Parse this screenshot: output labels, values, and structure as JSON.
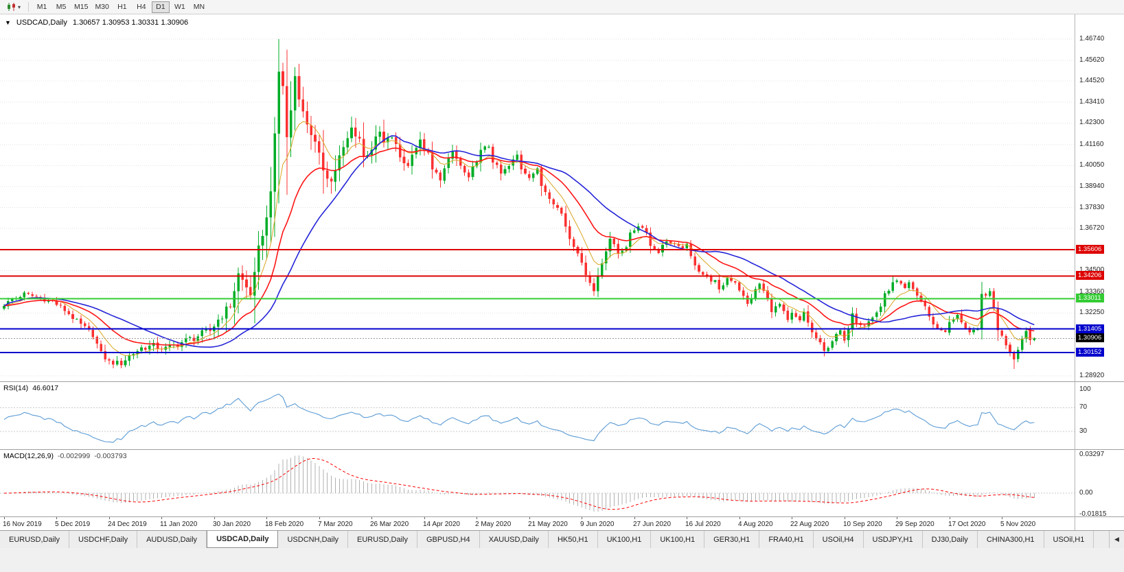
{
  "toolbar": {
    "chart_type_icon": "candlestick-chart",
    "dropdown_caret": "▾",
    "timeframes": [
      "M1",
      "M5",
      "M15",
      "M30",
      "H1",
      "H4",
      "D1",
      "W1",
      "MN"
    ],
    "active_timeframe": "D1"
  },
  "chart": {
    "collapse_icon": "▼",
    "symbol": "USDCAD,Daily",
    "ohlc": "1.30657 1.30953 1.30331 1.30906"
  },
  "price_axis": {
    "grid_labels": [
      "1.46740",
      "1.45620",
      "1.44520",
      "1.43410",
      "1.42300",
      "1.41160",
      "1.40050",
      "1.38940",
      "1.37830",
      "1.36720",
      "1.34500",
      "1.33360",
      "1.32250",
      "1.28920"
    ],
    "level_badges": [
      {
        "value": "1.35606",
        "price": 1.35606,
        "color": "#dd0000"
      },
      {
        "value": "1.34206",
        "price": 1.34206,
        "color": "#dd0000"
      },
      {
        "value": "1.33011",
        "price": 1.33011,
        "color": "#33cc33"
      },
      {
        "value": "1.31405",
        "price": 1.31405,
        "color": "#0000cc"
      },
      {
        "value": "1.30906",
        "price": 1.30906,
        "color": "#000000",
        "current": true
      },
      {
        "value": "1.30152",
        "price": 1.30152,
        "color": "#0000cc"
      }
    ]
  },
  "rsi_panel": {
    "label": "RSI(14)",
    "value": "46.6017",
    "axis_labels": [
      {
        "v": 100,
        "text": "100"
      },
      {
        "v": 70,
        "text": "70"
      },
      {
        "v": 30,
        "text": "30"
      }
    ]
  },
  "macd_panel": {
    "label": "MACD(12,26,9)",
    "main_value": "-0.002999",
    "signal_value": "-0.003793",
    "axis_labels": [
      {
        "v": 0.03297,
        "text": "0.03297"
      },
      {
        "v": 0,
        "text": "0.00"
      },
      {
        "v": -0.01815,
        "text": "-0.01815"
      }
    ]
  },
  "date_axis": {
    "labels": [
      "16 Nov 2019",
      "5 Dec 2019",
      "24 Dec 2019",
      "11 Jan 2020",
      "30 Jan 2020",
      "18 Feb 2020",
      "7 Mar 2020",
      "26 Mar 2020",
      "14 Apr 2020",
      "2 May 2020",
      "21 May 2020",
      "9 Jun 2020",
      "27 Jun 2020",
      "16 Jul 2020",
      "4 Aug 2020",
      "22 Aug 2020",
      "10 Sep 2020",
      "29 Sep 2020",
      "17 Oct 2020",
      "5 Nov 2020"
    ],
    "label_every_n_candles": 13
  },
  "tabs": {
    "items": [
      "EURUSD,Daily",
      "USDCHF,Daily",
      "AUDUSD,Daily",
      "USDCAD,Daily",
      "USDCNH,Daily",
      "EURUSD,Daily",
      "GBPUSD,H4",
      "XAUUSD,Daily",
      "HK50,H1",
      "UK100,H1",
      "UK100,H1",
      "GER30,H1",
      "FRA40,H1",
      "USOil,H4",
      "USDJPY,H1",
      "DJ30,Daily",
      "CHINA300,H1",
      "USOil,H1"
    ],
    "active_index": 3,
    "scroll_left_icon": "◀"
  },
  "chart_data": {
    "type": "candlestick",
    "symbol": "USDCAD",
    "timeframe": "D1",
    "n_candles": 256,
    "ylim": [
      1.2863,
      1.4805
    ],
    "noise_amp": 0.0022,
    "vol_peak_index": 70,
    "candle_colors": {
      "up": "#00ad27",
      "down": "#fb3131"
    },
    "close_anchors": [
      [
        0,
        1.327
      ],
      [
        2,
        1.3295
      ],
      [
        5,
        1.3325
      ],
      [
        8,
        1.331
      ],
      [
        12,
        1.3285
      ],
      [
        15,
        1.324
      ],
      [
        18,
        1.318
      ],
      [
        22,
        1.311
      ],
      [
        24,
        1.301
      ],
      [
        26,
        1.2965
      ],
      [
        29,
        1.2958
      ],
      [
        31,
        1.3
      ],
      [
        34,
        1.304
      ],
      [
        37,
        1.305
      ],
      [
        40,
        1.3035
      ],
      [
        44,
        1.307
      ],
      [
        47,
        1.3095
      ],
      [
        51,
        1.313
      ],
      [
        53,
        1.319
      ],
      [
        56,
        1.3265
      ],
      [
        58,
        1.343
      ],
      [
        60,
        1.336
      ],
      [
        61,
        1.333
      ],
      [
        62,
        1.342
      ],
      [
        63,
        1.356
      ],
      [
        64,
        1.365
      ],
      [
        65,
        1.372
      ],
      [
        66,
        1.389
      ],
      [
        67,
        1.415
      ],
      [
        68,
        1.45
      ],
      [
        69,
        1.443
      ],
      [
        70,
        1.415
      ],
      [
        71,
        1.43
      ],
      [
        72,
        1.448
      ],
      [
        73,
        1.438
      ],
      [
        74,
        1.428
      ],
      [
        76,
        1.418
      ],
      [
        78,
        1.405
      ],
      [
        79,
        1.399
      ],
      [
        81,
        1.392
      ],
      [
        83,
        1.405
      ],
      [
        84,
        1.409
      ],
      [
        86,
        1.42
      ],
      [
        88,
        1.415
      ],
      [
        89,
        1.405
      ],
      [
        91,
        1.41
      ],
      [
        93,
        1.418
      ],
      [
        94,
        1.412
      ],
      [
        96,
        1.416
      ],
      [
        98,
        1.405
      ],
      [
        100,
        1.4
      ],
      [
        101,
        1.408
      ],
      [
        103,
        1.413
      ],
      [
        105,
        1.406
      ],
      [
        106,
        1.398
      ],
      [
        108,
        1.394
      ],
      [
        110,
        1.403
      ],
      [
        111,
        1.408
      ],
      [
        113,
        1.4
      ],
      [
        115,
        1.393
      ],
      [
        116,
        1.399
      ],
      [
        118,
        1.408
      ],
      [
        120,
        1.411
      ],
      [
        121,
        1.403
      ],
      [
        123,
        1.396
      ],
      [
        125,
        1.4
      ],
      [
        127,
        1.406
      ],
      [
        128,
        1.399
      ],
      [
        130,
        1.395
      ],
      [
        132,
        1.398
      ],
      [
        133,
        1.39
      ],
      [
        135,
        1.384
      ],
      [
        137,
        1.378
      ],
      [
        138,
        1.375
      ],
      [
        140,
        1.362
      ],
      [
        142,
        1.355
      ],
      [
        143,
        1.348
      ],
      [
        145,
        1.339
      ],
      [
        146,
        1.334
      ],
      [
        147,
        1.342
      ],
      [
        149,
        1.356
      ],
      [
        150,
        1.362
      ],
      [
        152,
        1.354
      ],
      [
        154,
        1.358
      ],
      [
        155,
        1.364
      ],
      [
        157,
        1.369
      ],
      [
        159,
        1.366
      ],
      [
        160,
        1.358
      ],
      [
        162,
        1.355
      ],
      [
        164,
        1.361
      ],
      [
        165,
        1.359
      ],
      [
        167,
        1.357
      ],
      [
        169,
        1.358
      ],
      [
        170,
        1.352
      ],
      [
        172,
        1.345
      ],
      [
        174,
        1.341
      ],
      [
        176,
        1.339
      ],
      [
        177,
        1.334
      ],
      [
        179,
        1.341
      ],
      [
        181,
        1.339
      ],
      [
        182,
        1.335
      ],
      [
        184,
        1.327
      ],
      [
        185,
        1.331
      ],
      [
        187,
        1.338
      ],
      [
        189,
        1.33
      ],
      [
        190,
        1.324
      ],
      [
        192,
        1.327
      ],
      [
        194,
        1.318
      ],
      [
        195,
        1.322
      ],
      [
        197,
        1.318
      ],
      [
        198,
        1.323
      ],
      [
        200,
        1.312
      ],
      [
        202,
        1.306
      ],
      [
        203,
        1.302
      ],
      [
        205,
        1.308
      ],
      [
        207,
        1.313
      ],
      [
        208,
        1.307
      ],
      [
        210,
        1.323
      ],
      [
        211,
        1.318
      ],
      [
        213,
        1.316
      ],
      [
        215,
        1.32
      ],
      [
        217,
        1.326
      ],
      [
        218,
        1.332
      ],
      [
        220,
        1.338
      ],
      [
        221,
        1.339
      ],
      [
        223,
        1.335
      ],
      [
        224,
        1.338
      ],
      [
        226,
        1.332
      ],
      [
        228,
        1.326
      ],
      [
        229,
        1.32
      ],
      [
        231,
        1.314
      ],
      [
        233,
        1.313
      ],
      [
        234,
        1.317
      ],
      [
        236,
        1.321
      ],
      [
        237,
        1.318
      ],
      [
        239,
        1.312
      ],
      [
        241,
        1.313
      ],
      [
        242,
        1.332
      ],
      [
        244,
        1.333
      ],
      [
        245,
        1.325
      ],
      [
        246,
        1.314
      ],
      [
        248,
        1.306
      ],
      [
        249,
        1.302
      ],
      [
        250,
        1.2985
      ],
      [
        251,
        1.304
      ],
      [
        252,
        1.309
      ],
      [
        253,
        1.313
      ],
      [
        254,
        1.308
      ],
      [
        255,
        1.3091
      ]
    ],
    "extremes": {
      "26": {
        "l": 1.2952
      },
      "29": {
        "l": 1.2932
      },
      "58": {
        "h": 1.3465
      },
      "68": {
        "h": 1.4674
      },
      "72": {
        "h": 1.4525
      },
      "81": {
        "l": 1.3855
      },
      "146": {
        "l": 1.3315
      },
      "203": {
        "l": 1.2995
      },
      "220": {
        "h": 1.342
      },
      "242": {
        "h": 1.339
      },
      "250": {
        "l": 1.2928
      }
    },
    "horizontal_lines": [
      {
        "price": 1.35606,
        "color": "#dd0000",
        "width": 2
      },
      {
        "price": 1.34206,
        "color": "#dd0000",
        "width": 2
      },
      {
        "price": 1.33011,
        "color": "#33cc33",
        "width": 2
      },
      {
        "price": 1.31405,
        "color": "#0000cc",
        "width": 2
      },
      {
        "price": 1.30152,
        "color": "#0000cc",
        "width": 2
      }
    ],
    "current_price": 1.30906,
    "moving_averages": [
      {
        "type": "ema",
        "period": 8,
        "color": "#d9a521",
        "width": 1
      },
      {
        "type": "ema",
        "period": 20,
        "color": "#ff1414",
        "width": 1.6
      },
      {
        "type": "sma",
        "period": 30,
        "color": "#2424d8",
        "width": 1.6
      }
    ],
    "rsi": {
      "period": 14,
      "color": "#5b9bd5",
      "ylim": [
        0,
        113
      ],
      "levels": [
        70,
        30
      ],
      "current": 46.6017
    },
    "macd": {
      "fast": 12,
      "slow": 26,
      "signal": 9,
      "ylim": [
        -0.0199,
        0.0371
      ],
      "histogram_color": "#b0b0b0",
      "signal_color": "#ff0000",
      "current_main": -0.002999,
      "current_signal": -0.003793
    }
  }
}
